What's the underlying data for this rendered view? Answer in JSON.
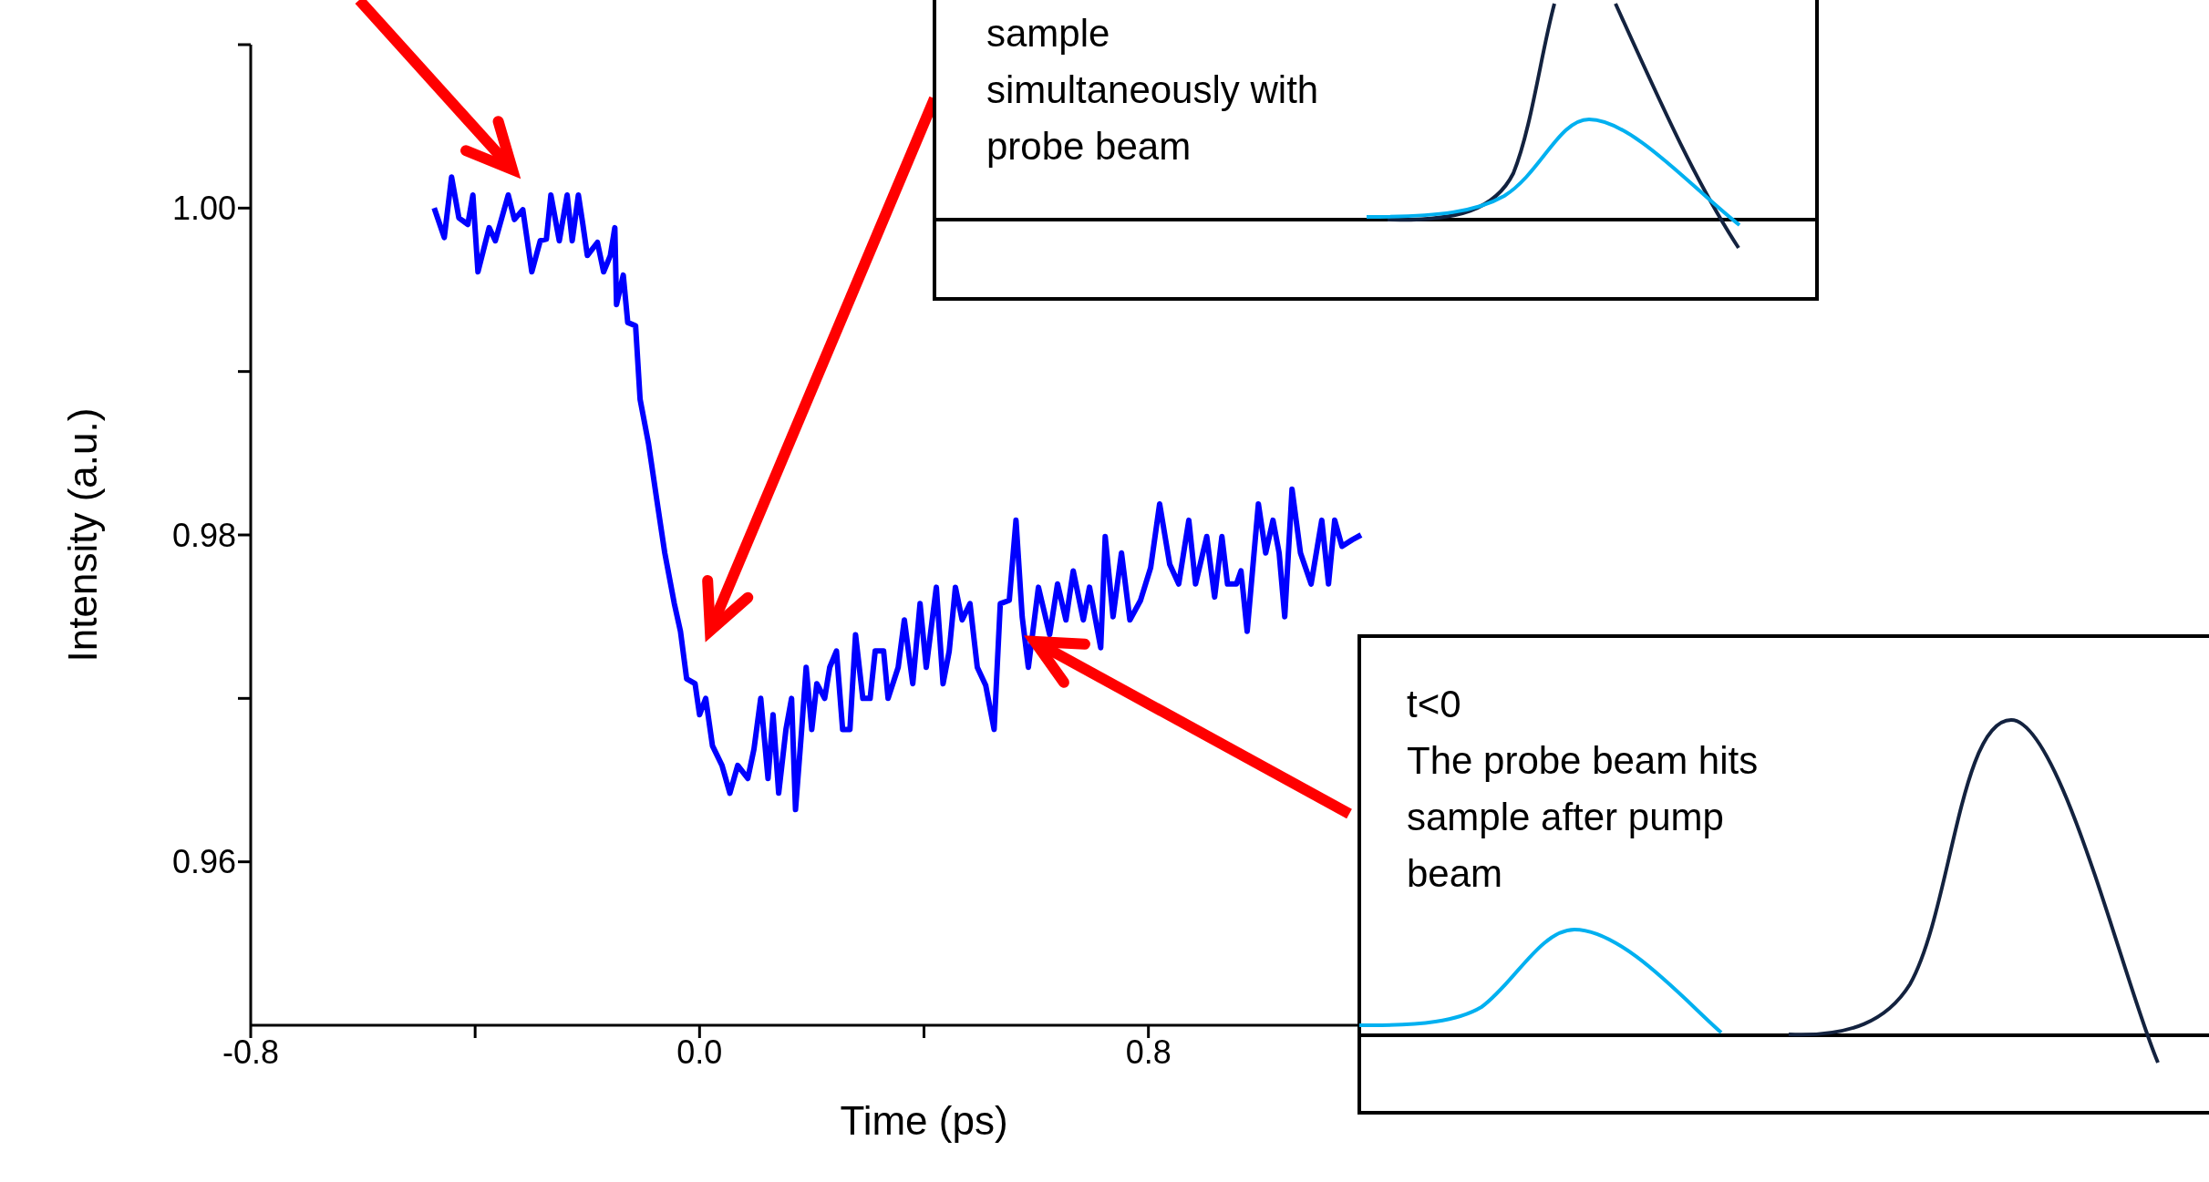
{
  "chart_data": {
    "type": "line",
    "xlabel": "Time (ps)",
    "ylabel": "Intensity (a.u.)",
    "xlim": [
      -0.8,
      1.6
    ],
    "xticks": [
      -0.8,
      {
        "value": -0.4,
        "label": null
      },
      {
        "value": 0,
        "label": "0.0"
      },
      {
        "value": 0.4,
        "label": null
      },
      0.8
    ],
    "ylim": [
      0.95,
      1.01
    ],
    "yticks": [
      0.96,
      {
        "value": 0.97,
        "label": null
      },
      0.98,
      {
        "value": 0.99,
        "label": null
      },
      {
        "value": 1,
        "label": "1.00"
      },
      {
        "value": 1.01,
        "label": null
      }
    ],
    "x": [
      -0.473,
      -0.455,
      -0.442,
      -0.429,
      -0.413,
      -0.404,
      -0.395,
      -0.375,
      -0.364,
      -0.341,
      -0.33,
      -0.315,
      -0.299,
      -0.284,
      -0.273,
      -0.265,
      -0.25,
      -0.236,
      -0.227,
      -0.216,
      -0.208,
      -0.2,
      -0.182,
      -0.171,
      -0.159,
      -0.151,
      -0.148,
      -0.136,
      -0.128,
      -0.114,
      -0.106,
      -0.091,
      -0.076,
      -0.062,
      -0.045,
      -0.034,
      -0.023,
      -0.008,
      0,
      0.011,
      0.023,
      0.04,
      0.054,
      0.068,
      0.086,
      0.097,
      0.109,
      0.122,
      0.131,
      0.141,
      0.154,
      0.164,
      0.171,
      0.182,
      0.19,
      0.2,
      0.209,
      0.223,
      0.232,
      0.244,
      0.255,
      0.268,
      0.278,
      0.291,
      0.304,
      0.313,
      0.328,
      0.336,
      0.354,
      0.365,
      0.38,
      0.393,
      0.404,
      0.422,
      0.434,
      0.445,
      0.456,
      0.468,
      0.482,
      0.495,
      0.51,
      0.525,
      0.536,
      0.552,
      0.564,
      0.575,
      0.586,
      0.604,
      0.624,
      0.638,
      0.653,
      0.666,
      0.684,
      0.695,
      0.715,
      0.723,
      0.737,
      0.752,
      0.767,
      0.786,
      0.804,
      0.82,
      0.838,
      0.854,
      0.872,
      0.884,
      0.904,
      0.918,
      0.931,
      0.941,
      0.957,
      0.965,
      0.976,
      0.996,
      1.009,
      1.022,
      1.033,
      1.043,
      1.056,
      1.071,
      1.09,
      1.109,
      1.121,
      1.132,
      1.145,
      1.163,
      1.179
    ],
    "series": [
      {
        "color": "#0000ff",
        "values": [
          1.0,
          0.9982,
          1.0019,
          0.9994,
          0.999,
          1.0008,
          0.9961,
          0.9988,
          0.998,
          1.0008,
          0.9993,
          0.9999,
          0.9961,
          0.998,
          0.9981,
          1.0008,
          0.998,
          1.0008,
          0.998,
          1.0008,
          0.999,
          0.9971,
          0.9979,
          0.9961,
          0.9971,
          0.9988,
          0.9941,
          0.9959,
          0.993,
          0.9928,
          0.9883,
          0.9856,
          0.9821,
          0.9789,
          0.9758,
          0.9741,
          0.9712,
          0.9709,
          0.969,
          0.97,
          0.9671,
          0.9659,
          0.9642,
          0.9659,
          0.9651,
          0.9669,
          0.97,
          0.9651,
          0.969,
          0.9642,
          0.9681,
          0.97,
          0.9632,
          0.9681,
          0.9719,
          0.9681,
          0.9709,
          0.97,
          0.9719,
          0.9729,
          0.9681,
          0.9681,
          0.9739,
          0.97,
          0.97,
          0.9729,
          0.9729,
          0.97,
          0.9719,
          0.9748,
          0.9709,
          0.9758,
          0.9719,
          0.9768,
          0.9709,
          0.9729,
          0.9768,
          0.9748,
          0.9758,
          0.9719,
          0.9708,
          0.9681,
          0.9758,
          0.976,
          0.9809,
          0.975,
          0.9719,
          0.9768,
          0.9739,
          0.977,
          0.9748,
          0.9778,
          0.9748,
          0.9768,
          0.9731,
          0.9799,
          0.975,
          0.9789,
          0.9748,
          0.976,
          0.978,
          0.9819,
          0.9782,
          0.977,
          0.9809,
          0.977,
          0.9799,
          0.9762,
          0.9799,
          0.977,
          0.977,
          0.9778,
          0.9741,
          0.9819,
          0.9789,
          0.9809,
          0.9789,
          0.975,
          0.9828,
          0.9789,
          0.977,
          0.9809,
          0.977,
          0.9809,
          0.9793,
          0.9797,
          0.98
        ]
      }
    ],
    "annotations": [
      "sample simultaneously with probe beam",
      "t<0",
      "The probe beam hits sample after pump beam"
    ]
  }
}
